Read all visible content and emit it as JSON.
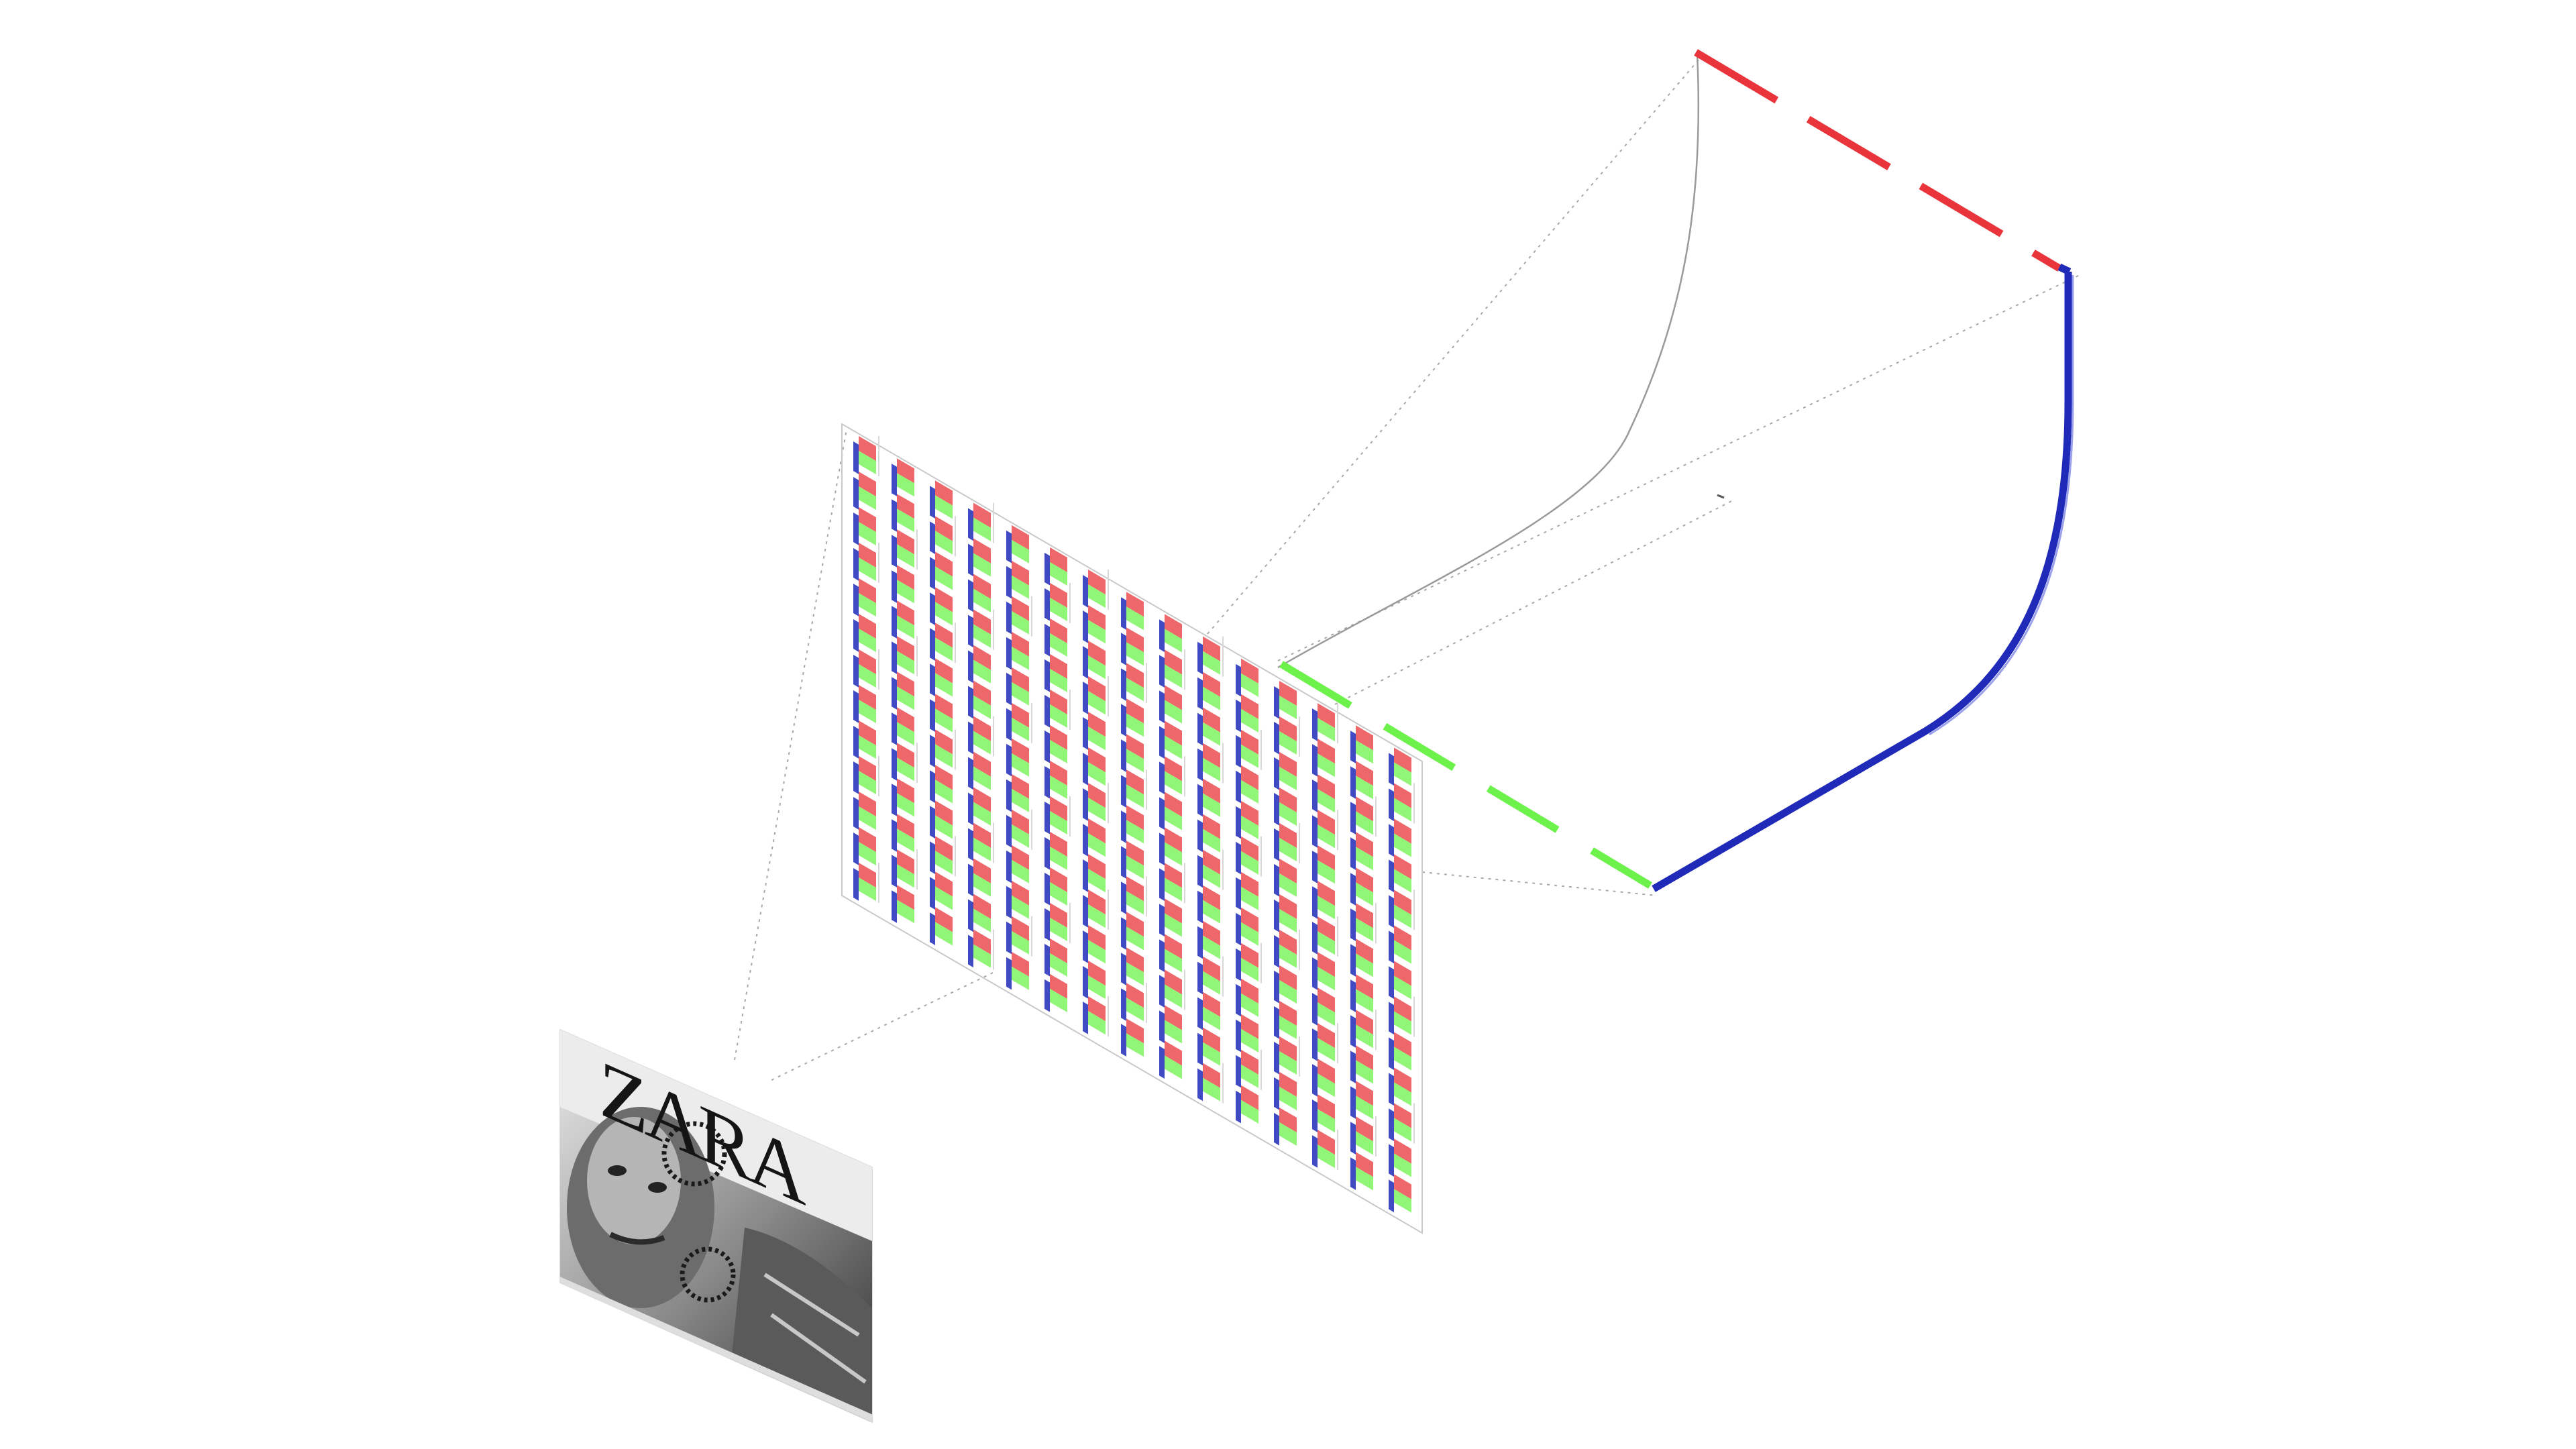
{
  "diagram": {
    "screenshot": {
      "brand_logo": "ZARA"
    },
    "grid": {
      "columns": 15,
      "rows": 13
    },
    "colors": {
      "red": "#e8343a",
      "green": "#6cf24a",
      "blue": "#1f2ab8",
      "connector": "#9a9a9a",
      "frame": "#c9c9c9"
    }
  }
}
